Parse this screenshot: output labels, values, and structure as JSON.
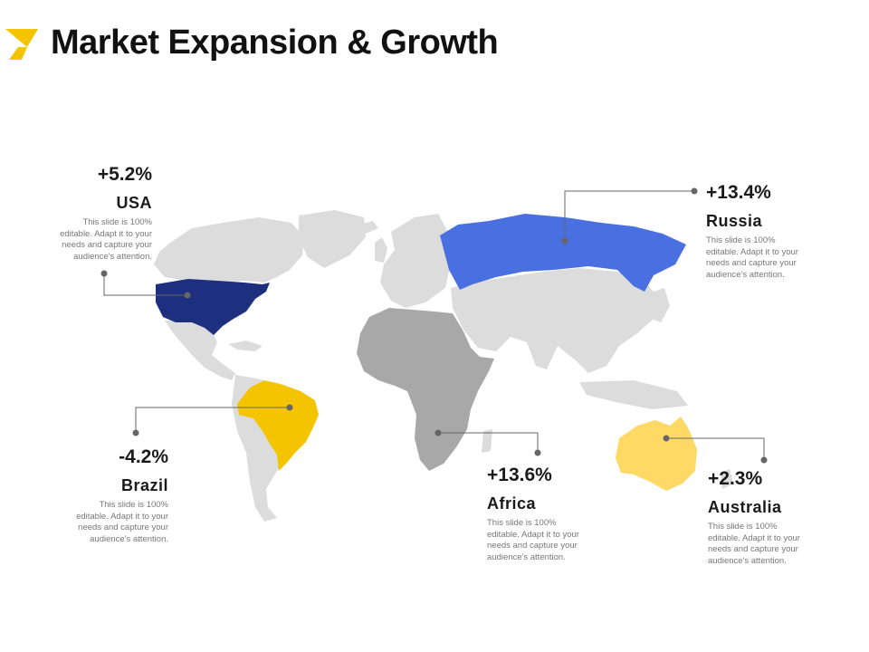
{
  "slide": {
    "title": "Market Expansion & Growth",
    "logo_colors": {
      "top": "#f5c400",
      "bottom": "#f5c400"
    }
  },
  "map": {
    "land_color": "#dcdcdc",
    "highlight_colors": {
      "usa": "#1f2f80",
      "russia": "#4a6fe0",
      "brazil": "#f5c400",
      "africa": "#a8a8a8",
      "australia": "#ffd966"
    }
  },
  "callouts": {
    "usa": {
      "value": "+5.2%",
      "region": "USA",
      "desc": [
        "This slide is 100%",
        "editable.  Adapt it to your",
        "needs and capture your",
        "audience's attention."
      ]
    },
    "russia": {
      "value": "+13.4%",
      "region": "Russia",
      "desc": [
        "This slide is 100%",
        "editable.  Adapt it to your",
        "needs and capture your",
        "audience's attention."
      ]
    },
    "brazil": {
      "value": "-4.2%",
      "region": "Brazil",
      "desc": [
        "This slide is 100%",
        "editable.  Adapt it to your",
        "needs and capture your",
        "audience's attention."
      ]
    },
    "africa": {
      "value": "+13.6%",
      "region": "Africa",
      "desc": [
        "This slide is 100%",
        "editable.  Adapt it to your",
        "needs and capture your",
        "audience's attention."
      ]
    },
    "australia": {
      "value": "+2.3%",
      "region": "Australia",
      "desc": [
        "This slide is 100%",
        "editable.  Adapt it to your",
        "needs and capture your",
        "audience's attention."
      ]
    }
  }
}
